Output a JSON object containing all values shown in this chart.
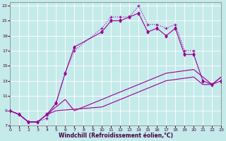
{
  "xlabel": "Windchill (Refroidissement éolien,°C)",
  "bg_color": "#c5eaea",
  "line_color": "#990099",
  "xlim": [
    0,
    23
  ],
  "ylim": [
    7,
    23.5
  ],
  "xticks": [
    0,
    1,
    2,
    3,
    4,
    5,
    6,
    7,
    8,
    9,
    10,
    11,
    12,
    13,
    14,
    15,
    16,
    17,
    18,
    19,
    20,
    21,
    22,
    23
  ],
  "yticks": [
    7,
    9,
    11,
    13,
    15,
    17,
    19,
    21,
    23
  ],
  "line1_x": [
    0,
    1,
    2,
    3,
    4,
    5,
    6,
    7,
    10,
    11,
    12,
    13,
    14,
    15,
    16,
    17,
    18,
    19,
    20
  ],
  "line1_y": [
    9.0,
    8.5,
    7.5,
    7.5,
    8.0,
    10.0,
    14.0,
    17.0,
    20.0,
    21.5,
    21.5,
    21.5,
    23.0,
    20.5,
    20.5,
    20.0,
    20.5,
    17.0,
    17.0
  ],
  "line2_x": [
    0,
    1,
    2,
    3,
    4,
    5,
    6,
    7,
    10,
    11,
    12,
    13,
    14,
    15,
    16,
    17,
    18,
    19,
    20,
    21,
    22,
    23
  ],
  "line2_y": [
    9.0,
    8.5,
    7.5,
    7.5,
    8.5,
    10.0,
    14.0,
    17.5,
    19.5,
    21.0,
    21.0,
    21.5,
    22.0,
    19.5,
    20.0,
    19.0,
    20.0,
    16.5,
    16.5,
    13.0,
    12.5,
    13.0
  ],
  "line3_x": [
    0,
    1,
    2,
    3,
    4,
    5,
    6,
    7,
    10,
    14,
    17,
    20,
    21,
    22,
    23
  ],
  "line3_y": [
    9.0,
    8.5,
    7.5,
    7.5,
    8.5,
    9.5,
    10.5,
    9.0,
    10.5,
    12.5,
    14.0,
    14.5,
    13.5,
    12.5,
    13.5
  ],
  "line4_x": [
    0,
    1,
    2,
    3,
    4,
    5,
    10,
    14,
    17,
    20,
    21,
    22,
    23
  ],
  "line4_y": [
    9.0,
    8.5,
    7.5,
    7.5,
    8.5,
    9.0,
    9.5,
    11.5,
    13.0,
    13.5,
    12.5,
    12.5,
    13.5
  ]
}
